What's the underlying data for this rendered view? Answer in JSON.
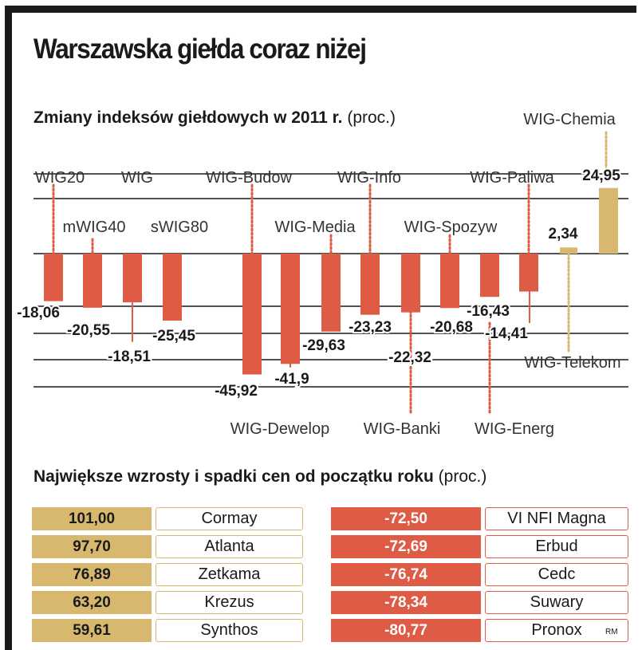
{
  "title": "Warszawska giełda coraz niżej",
  "chart_section": {
    "title": "Zmiany indeksów giełdowych w 2011 r.",
    "unit": "(proc.)"
  },
  "table_section": {
    "title": "Największe wzrosty i spadki cen od początku roku",
    "unit": "(proc.)"
  },
  "colors": {
    "negative": "#de5b45",
    "positive": "#d8b86e",
    "lines": "#1a1a1a"
  },
  "chart_data": {
    "type": "bar",
    "title": "Zmiany indeksów giełdowych w 2011 r. (proc.)",
    "ylabel": "proc.",
    "ylim": [
      -45.92,
      24.95
    ],
    "grid": true,
    "categories": [
      "WIG20",
      "mWIG40",
      "WIG",
      "sWIG80",
      "WIG-Budow",
      "WIG-Dewelop",
      "WIG-Media",
      "WIG-Info",
      "WIG-Banki",
      "WIG-Spozyw",
      "WIG-Energ",
      "WIG-Paliwa",
      "WIG-Telekom",
      "WIG-Chemia"
    ],
    "values": [
      -18.06,
      -20.55,
      -18.51,
      -25.45,
      -45.92,
      -41.9,
      -29.63,
      -23.23,
      -22.32,
      -20.68,
      -16.43,
      -14.41,
      2.34,
      24.95
    ],
    "value_labels": [
      "-18,06",
      "-20,55",
      "-18,51",
      "-25,45",
      "-45,92",
      "-41,9",
      "-29,63",
      "-23,23",
      "-22,32",
      "-20,68",
      "-16,43",
      "-14,41",
      "2,34",
      "24,95"
    ]
  },
  "gainers": [
    {
      "value": "101,00",
      "name": "Cormay"
    },
    {
      "value": "97,70",
      "name": "Atlanta"
    },
    {
      "value": "76,89",
      "name": "Zetkama"
    },
    {
      "value": "63,20",
      "name": "Krezus"
    },
    {
      "value": "59,61",
      "name": "Synthos"
    }
  ],
  "losers": [
    {
      "value": "-72,50",
      "name": "VI NFI Magna"
    },
    {
      "value": "-72,69",
      "name": "Erbud"
    },
    {
      "value": "-76,74",
      "name": "Cedc"
    },
    {
      "value": "-78,34",
      "name": "Suwary"
    },
    {
      "value": "-80,77",
      "name": "Pronox"
    }
  ],
  "credit": "RM"
}
